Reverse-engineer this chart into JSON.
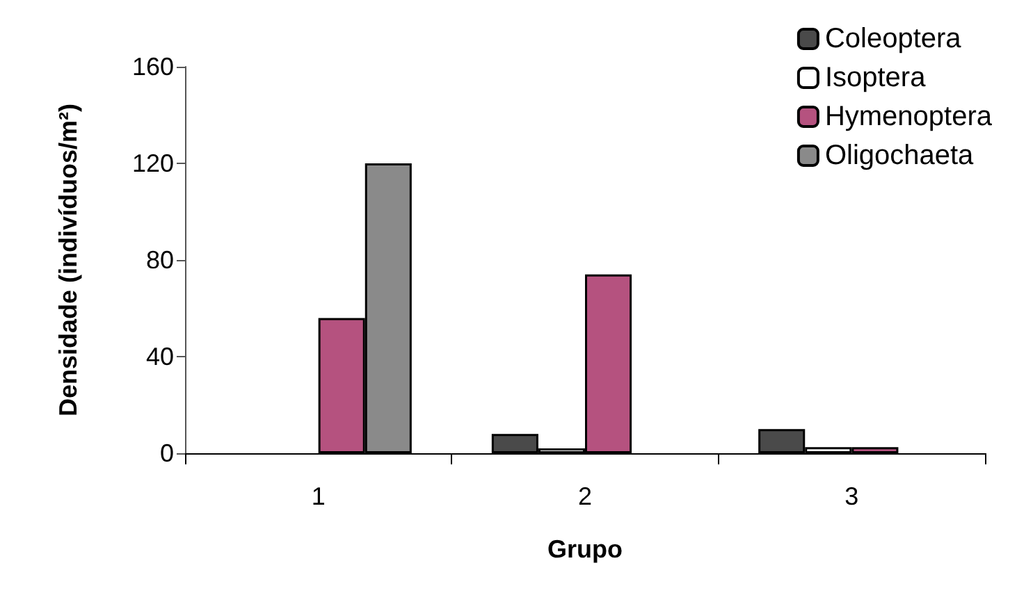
{
  "chart_data": {
    "type": "bar",
    "xlabel": "Grupo",
    "ylabel": "Densidade (indivíduos/m²)",
    "categories": [
      "1",
      "2",
      "3"
    ],
    "series": [
      {
        "name": "Coleoptera",
        "color": "#4a4a4a",
        "values": [
          0,
          8,
          10
        ]
      },
      {
        "name": "Isoptera",
        "color": "#ffffff",
        "values": [
          0,
          2,
          2.5
        ]
      },
      {
        "name": "Hymenoptera",
        "color": "#b5527f",
        "values": [
          56,
          74,
          2.5
        ]
      },
      {
        "name": "Oligochaeta",
        "color": "#8a8a8a",
        "values": [
          120,
          null,
          null
        ]
      }
    ],
    "ylim": [
      0,
      160
    ],
    "yticks": [
      0,
      40,
      80,
      120,
      160
    ],
    "grid": false,
    "legend": "top right"
  }
}
